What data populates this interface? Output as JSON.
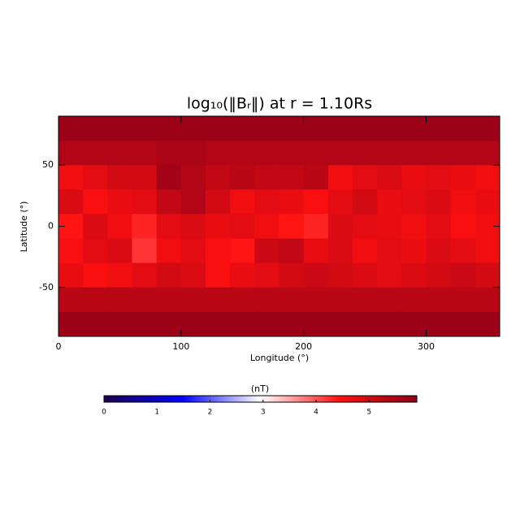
{
  "chart_data": {
    "type": "heatmap",
    "title": "log₁₀(‖Bᵣ‖) at r = 1.10Rs",
    "xlabel": "Longitude (°)",
    "ylabel": "Latitude (°)",
    "xlim": [
      0,
      360
    ],
    "ylim": [
      -90,
      90
    ],
    "xticks": [
      0,
      100,
      200,
      300
    ],
    "yticks": [
      -50,
      0,
      50
    ],
    "x": [
      10,
      30,
      50,
      70,
      90,
      110,
      130,
      150,
      170,
      190,
      210,
      230,
      250,
      270,
      290,
      310,
      330,
      350
    ],
    "y": [
      80,
      60,
      40,
      20,
      0,
      -20,
      -40,
      -60,
      -80
    ],
    "z": [
      [
        5.7,
        5.7,
        5.7,
        5.7,
        5.7,
        5.7,
        5.7,
        5.7,
        5.7,
        5.7,
        5.7,
        5.7,
        5.7,
        5.7,
        5.7,
        5.7,
        5.7,
        5.7
      ],
      [
        5.4,
        5.4,
        5.4,
        5.4,
        5.5,
        5.5,
        5.4,
        5.4,
        5.4,
        5.4,
        5.4,
        5.4,
        5.4,
        5.4,
        5.4,
        5.4,
        5.4,
        5.4
      ],
      [
        4.6,
        4.8,
        5.0,
        5.0,
        5.6,
        5.4,
        5.2,
        5.3,
        5.2,
        5.2,
        5.3,
        4.6,
        4.8,
        4.9,
        4.7,
        4.8,
        4.7,
        4.6
      ],
      [
        4.9,
        4.5,
        4.7,
        4.8,
        5.2,
        5.4,
        5.0,
        4.6,
        4.8,
        4.7,
        4.5,
        4.8,
        5.0,
        4.7,
        4.8,
        4.9,
        4.6,
        4.7
      ],
      [
        4.4,
        4.9,
        4.6,
        4.3,
        4.8,
        4.9,
        4.7,
        4.8,
        4.6,
        4.4,
        4.3,
        4.9,
        4.8,
        4.7,
        4.6,
        4.8,
        4.5,
        4.6
      ],
      [
        4.5,
        4.8,
        4.9,
        4.2,
        4.6,
        4.8,
        4.5,
        4.4,
        5.1,
        5.2,
        4.7,
        4.9,
        4.6,
        4.8,
        4.7,
        4.9,
        4.8,
        4.6
      ],
      [
        4.7,
        4.5,
        4.6,
        4.8,
        5.0,
        4.9,
        4.5,
        4.7,
        4.8,
        5.0,
        5.1,
        5.0,
        4.9,
        4.8,
        4.9,
        5.0,
        5.1,
        5.0
      ],
      [
        5.3,
        5.3,
        5.3,
        5.3,
        5.3,
        5.3,
        5.3,
        5.3,
        5.3,
        5.3,
        5.3,
        5.3,
        5.3,
        5.3,
        5.3,
        5.3,
        5.3,
        5.3
      ],
      [
        5.7,
        5.7,
        5.7,
        5.7,
        5.7,
        5.7,
        5.7,
        5.7,
        5.7,
        5.7,
        5.7,
        5.7,
        5.7,
        5.7,
        5.7,
        5.7,
        5.7,
        5.7
      ]
    ],
    "zlim": [
      0,
      5.9
    ],
    "colorscale": [
      "#1a0050",
      "#0000ff",
      "#ffffff",
      "#ff1010",
      "#8b0018"
    ],
    "colorbar_label": "(nT)",
    "colorbar_ticks": [
      0,
      1,
      2,
      3,
      4,
      5
    ]
  }
}
